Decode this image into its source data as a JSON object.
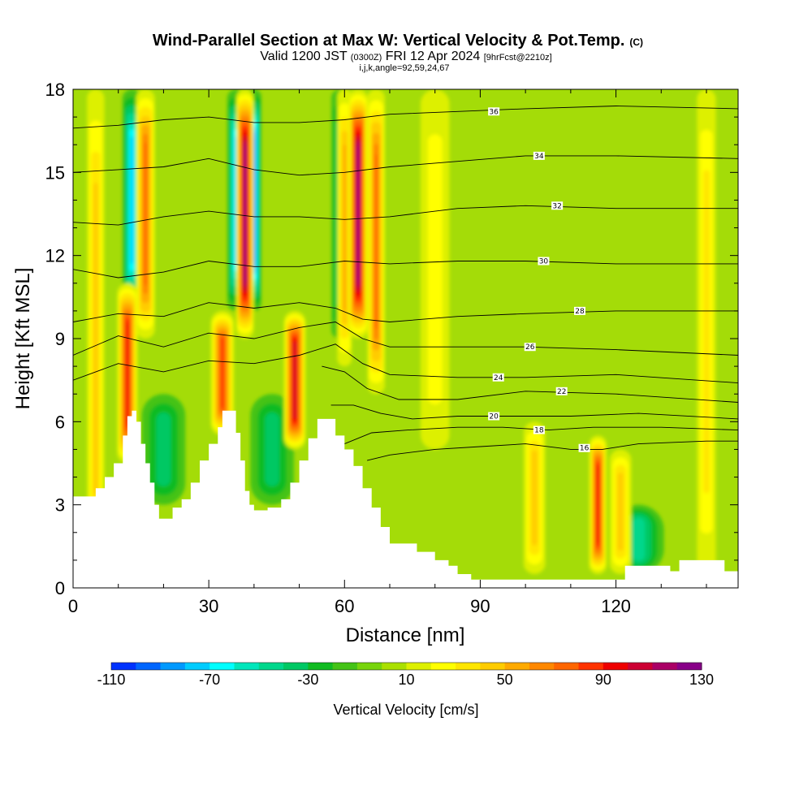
{
  "title": {
    "main": "Wind-Parallel Section at Max W: Vertical Velocity & Pot.Temp.",
    "copyright": "(C)",
    "line2_valid": "Valid 1200 JST",
    "line2_utc": "(0300Z)",
    "line2_date": "FRI 12 Apr 2024",
    "line2_fcst": "[9hrFcst@2210z]",
    "line3": "i,j,k,angle=92,59,24,67"
  },
  "chart_data": {
    "type": "heatmap",
    "xlabel": "Distance [nm]",
    "ylabel": "Height [Kft MSL]",
    "xlim": [
      0,
      147
    ],
    "ylim": [
      0,
      18
    ],
    "xticks": [
      0,
      30,
      60,
      90,
      120
    ],
    "yticks": [
      0,
      3,
      6,
      9,
      12,
      15,
      18
    ],
    "grid": false,
    "colorbar": {
      "label": "Vertical Velocity [cm/s]",
      "min": -110,
      "max": 130,
      "step": 10,
      "tick_labels": [
        "-110",
        "-70",
        "-30",
        "10",
        "50",
        "90",
        "130"
      ],
      "colors": [
        "#0000ff",
        "#0033ff",
        "#0066ff",
        "#0099ff",
        "#00ccff",
        "#00ffff",
        "#00e6bb",
        "#00d78c",
        "#00c864",
        "#11bb22",
        "#44c317",
        "#77d40c",
        "#aae000",
        "#ddf000",
        "#ffff00",
        "#ffe600",
        "#ffcc00",
        "#ffaa00",
        "#ff8800",
        "#ff6600",
        "#ff3300",
        "#ee0000",
        "#cc0033",
        "#aa0066",
        "#880088",
        "#5500aa"
      ]
    },
    "terrain_kft": [
      [
        0,
        3.3
      ],
      [
        3,
        3.3
      ],
      [
        5,
        3.6
      ],
      [
        7,
        4.0
      ],
      [
        9,
        4.5
      ],
      [
        11,
        5.5
      ],
      [
        12,
        6.2
      ],
      [
        13,
        6.4
      ],
      [
        14,
        6.0
      ],
      [
        15,
        5.2
      ],
      [
        16,
        4.5
      ],
      [
        17,
        3.8
      ],
      [
        18,
        3.0
      ],
      [
        19,
        2.5
      ],
      [
        20,
        2.5
      ],
      [
        22,
        2.9
      ],
      [
        24,
        3.2
      ],
      [
        26,
        3.8
      ],
      [
        28,
        4.6
      ],
      [
        30,
        5.2
      ],
      [
        32,
        5.8
      ],
      [
        33,
        6.4
      ],
      [
        35,
        6.4
      ],
      [
        36,
        5.6
      ],
      [
        37,
        4.6
      ],
      [
        38,
        3.5
      ],
      [
        39,
        3.0
      ],
      [
        40,
        2.8
      ],
      [
        43,
        2.9
      ],
      [
        46,
        3.2
      ],
      [
        48,
        3.8
      ],
      [
        50,
        4.6
      ],
      [
        52,
        5.4
      ],
      [
        54,
        6.1
      ],
      [
        56,
        6.1
      ],
      [
        58,
        5.5
      ],
      [
        60,
        5.0
      ],
      [
        62,
        4.4
      ],
      [
        64,
        3.6
      ],
      [
        66,
        2.9
      ],
      [
        68,
        2.2
      ],
      [
        70,
        1.6
      ],
      [
        73,
        1.6
      ],
      [
        76,
        1.3
      ],
      [
        80,
        1.0
      ],
      [
        83,
        0.8
      ],
      [
        85,
        0.5
      ],
      [
        88,
        0.3
      ],
      [
        120,
        0.3
      ],
      [
        122,
        0.8
      ],
      [
        128,
        0.8
      ],
      [
        132,
        0.6
      ],
      [
        134,
        1.0
      ],
      [
        140,
        1.0
      ],
      [
        144,
        0.6
      ],
      [
        147,
        0.3
      ]
    ],
    "updrafts": [
      {
        "x": 5,
        "w": 1.2,
        "y0": 0,
        "y1": 18,
        "v": 40
      },
      {
        "x": 12,
        "w": 1.4,
        "y0": 4.5,
        "y1": 11,
        "v": 90
      },
      {
        "x": 16,
        "w": 1.3,
        "y0": 9,
        "y1": 18,
        "v": 70
      },
      {
        "x": 33,
        "w": 1.6,
        "y0": 5.5,
        "y1": 10,
        "v": 80
      },
      {
        "x": 38,
        "w": 1.2,
        "y0": 9,
        "y1": 18,
        "v": 120
      },
      {
        "x": 49,
        "w": 1.5,
        "y0": 5,
        "y1": 10,
        "v": 100
      },
      {
        "x": 60,
        "w": 1.0,
        "y0": 8,
        "y1": 18,
        "v": 50
      },
      {
        "x": 63,
        "w": 1.3,
        "y0": 9,
        "y1": 18,
        "v": 115
      },
      {
        "x": 67,
        "w": 1.2,
        "y0": 7,
        "y1": 18,
        "v": 70
      },
      {
        "x": 80,
        "w": 2.0,
        "y0": 5,
        "y1": 18,
        "v": 20
      },
      {
        "x": 102,
        "w": 1.5,
        "y0": 0.5,
        "y1": 6,
        "v": 35
      },
      {
        "x": 116,
        "w": 1.2,
        "y0": 0.5,
        "y1": 5.5,
        "v": 90
      },
      {
        "x": 121,
        "w": 1.5,
        "y0": 0.5,
        "y1": 5,
        "v": 35
      },
      {
        "x": 140,
        "w": 1.3,
        "y0": 0.5,
        "y1": 18,
        "v": 25
      }
    ],
    "downdrafts": [
      {
        "x": 13,
        "w": 1.3,
        "y0": 10,
        "y1": 18,
        "v": -70
      },
      {
        "x": 36,
        "w": 1.2,
        "y0": 10,
        "y1": 18,
        "v": -70
      },
      {
        "x": 40,
        "w": 1.0,
        "y0": 10,
        "y1": 18,
        "v": -90
      },
      {
        "x": 59,
        "w": 1.2,
        "y0": 9,
        "y1": 18,
        "v": -40
      },
      {
        "x": 20,
        "w": 3.0,
        "y0": 3,
        "y1": 7,
        "v": -30
      },
      {
        "x": 44,
        "w": 3.0,
        "y0": 3,
        "y1": 7,
        "v": -30
      },
      {
        "x": 125,
        "w": 3.5,
        "y0": 0.5,
        "y1": 3,
        "v": -40
      }
    ],
    "isentropes": [
      {
        "label": "16",
        "pts": [
          [
            65,
            4.6
          ],
          [
            70,
            4.8
          ],
          [
            80,
            5.0
          ],
          [
            90,
            5.1
          ],
          [
            100,
            5.2
          ],
          [
            110,
            5.0
          ],
          [
            117,
            5.0
          ],
          [
            125,
            5.2
          ],
          [
            140,
            5.3
          ],
          [
            147,
            5.3
          ]
        ],
        "label_at": [
          113,
          5.05
        ]
      },
      {
        "label": "18",
        "pts": [
          [
            60,
            5.2
          ],
          [
            66,
            5.6
          ],
          [
            74,
            5.7
          ],
          [
            85,
            5.8
          ],
          [
            95,
            5.8
          ],
          [
            105,
            5.7
          ],
          [
            115,
            5.8
          ],
          [
            130,
            5.8
          ],
          [
            147,
            5.7
          ]
        ],
        "label_at": [
          103,
          5.7
        ]
      },
      {
        "label": "20",
        "pts": [
          [
            57,
            6.6
          ],
          [
            62,
            6.6
          ],
          [
            68,
            6.3
          ],
          [
            75,
            6.1
          ],
          [
            85,
            6.2
          ],
          [
            95,
            6.2
          ],
          [
            110,
            6.2
          ],
          [
            125,
            6.3
          ],
          [
            147,
            6.1
          ]
        ],
        "label_at": [
          93,
          6.2
        ]
      },
      {
        "label": "22",
        "pts": [
          [
            55,
            8.0
          ],
          [
            60,
            7.8
          ],
          [
            65,
            7.2
          ],
          [
            72,
            6.8
          ],
          [
            85,
            6.8
          ],
          [
            100,
            7.1
          ],
          [
            120,
            7.0
          ],
          [
            147,
            6.7
          ]
        ],
        "label_at": [
          108,
          7.1
        ]
      },
      {
        "label": "24",
        "pts": [
          [
            0,
            7.5
          ],
          [
            10,
            8.1
          ],
          [
            20,
            7.8
          ],
          [
            30,
            8.2
          ],
          [
            40,
            8.1
          ],
          [
            50,
            8.4
          ],
          [
            58,
            8.8
          ],
          [
            64,
            8.1
          ],
          [
            70,
            7.7
          ],
          [
            85,
            7.6
          ],
          [
            100,
            7.6
          ],
          [
            120,
            7.7
          ],
          [
            147,
            7.4
          ]
        ],
        "label_at": [
          94,
          7.6
        ]
      },
      {
        "label": "26",
        "pts": [
          [
            0,
            8.4
          ],
          [
            10,
            9.1
          ],
          [
            20,
            8.7
          ],
          [
            30,
            9.2
          ],
          [
            40,
            9.0
          ],
          [
            50,
            9.4
          ],
          [
            58,
            9.6
          ],
          [
            64,
            9.0
          ],
          [
            70,
            8.7
          ],
          [
            85,
            8.7
          ],
          [
            100,
            8.7
          ],
          [
            120,
            8.6
          ],
          [
            147,
            8.4
          ]
        ],
        "label_at": [
          101,
          8.7
        ]
      },
      {
        "label": "28",
        "pts": [
          [
            0,
            9.6
          ],
          [
            10,
            9.9
          ],
          [
            20,
            9.8
          ],
          [
            30,
            10.3
          ],
          [
            40,
            10.1
          ],
          [
            50,
            10.3
          ],
          [
            58,
            10.1
          ],
          [
            64,
            9.7
          ],
          [
            70,
            9.6
          ],
          [
            85,
            9.8
          ],
          [
            100,
            9.9
          ],
          [
            120,
            10.0
          ],
          [
            147,
            10.0
          ]
        ],
        "label_at": [
          112,
          10.0
        ]
      },
      {
        "label": "30",
        "pts": [
          [
            0,
            11.5
          ],
          [
            10,
            11.2
          ],
          [
            20,
            11.4
          ],
          [
            30,
            11.8
          ],
          [
            40,
            11.6
          ],
          [
            50,
            11.6
          ],
          [
            60,
            11.8
          ],
          [
            70,
            11.7
          ],
          [
            85,
            11.8
          ],
          [
            100,
            11.8
          ],
          [
            120,
            11.7
          ],
          [
            147,
            11.7
          ]
        ],
        "label_at": [
          104,
          11.8
        ]
      },
      {
        "label": "32",
        "pts": [
          [
            0,
            13.2
          ],
          [
            10,
            13.1
          ],
          [
            20,
            13.4
          ],
          [
            30,
            13.6
          ],
          [
            40,
            13.4
          ],
          [
            50,
            13.4
          ],
          [
            60,
            13.3
          ],
          [
            70,
            13.4
          ],
          [
            85,
            13.7
          ],
          [
            100,
            13.8
          ],
          [
            120,
            13.7
          ],
          [
            147,
            13.7
          ]
        ],
        "label_at": [
          107,
          13.8
        ]
      },
      {
        "label": "34",
        "pts": [
          [
            0,
            15.0
          ],
          [
            10,
            15.1
          ],
          [
            20,
            15.2
          ],
          [
            30,
            15.5
          ],
          [
            40,
            15.1
          ],
          [
            50,
            14.9
          ],
          [
            60,
            15.0
          ],
          [
            70,
            15.2
          ],
          [
            85,
            15.4
          ],
          [
            100,
            15.6
          ],
          [
            120,
            15.6
          ],
          [
            147,
            15.5
          ]
        ],
        "label_at": [
          103,
          15.6
        ]
      },
      {
        "label": "36",
        "pts": [
          [
            0,
            16.6
          ],
          [
            10,
            16.7
          ],
          [
            20,
            16.9
          ],
          [
            30,
            17.0
          ],
          [
            40,
            16.8
          ],
          [
            50,
            16.8
          ],
          [
            60,
            16.9
          ],
          [
            70,
            17.1
          ],
          [
            85,
            17.2
          ],
          [
            100,
            17.3
          ],
          [
            120,
            17.4
          ],
          [
            147,
            17.3
          ]
        ],
        "label_at": [
          93,
          17.2
        ]
      }
    ]
  }
}
